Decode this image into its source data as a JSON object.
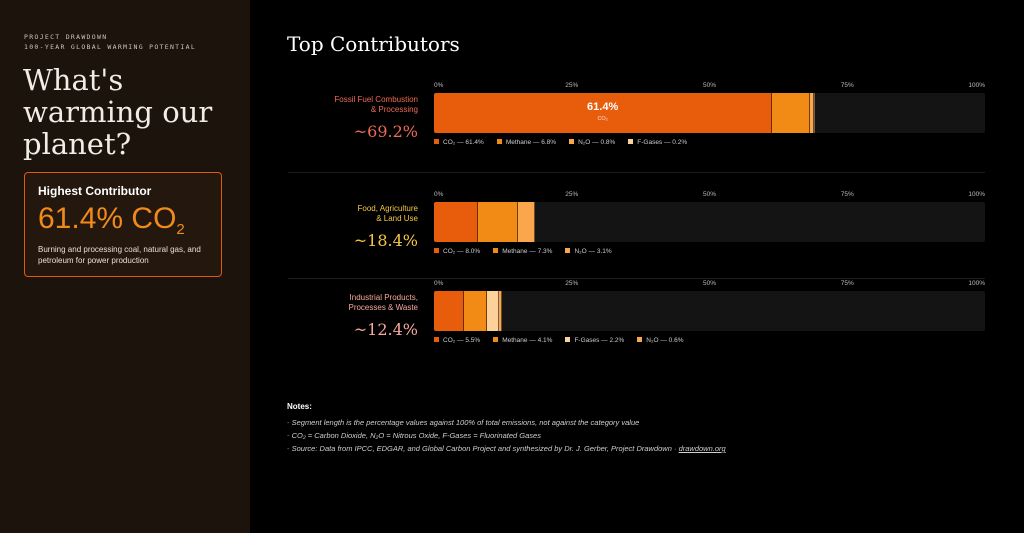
{
  "sidebar": {
    "kicker_1": "PROJECT DRAWDOWN",
    "kicker_2": "100-YEAR GLOBAL WARMING POTENTIAL",
    "headline": "What's warming our planet?",
    "card": {
      "title": "Highest Contributor",
      "value": "61.4% CO",
      "value_sub": "2",
      "description": "Burning and processing coal, natural gas, and petroleum for power production"
    }
  },
  "main": {
    "title": "Top Contributors"
  },
  "colors": {
    "co2": "#e85d0c",
    "methane": "#f28a16",
    "n2o": "#f9a64c",
    "fgases": "#fcd29a",
    "accent": "#e05a0e"
  },
  "chart_data": {
    "type": "bar",
    "orientation": "horizontal",
    "stacked": true,
    "xlim": [
      0,
      100
    ],
    "x_ticks": [
      "0%",
      "25%",
      "50%",
      "75%",
      "100%"
    ],
    "categories": [
      {
        "label_lines": [
          "Fossil Fuel Combustion",
          "& Processing"
        ],
        "total_label": "~69.2%",
        "total_color": "#f06a55",
        "segments": [
          {
            "gas": "co2",
            "value": 61.4,
            "legend": "CO₂ — 61.4%",
            "label": "61.4%",
            "sublabel": "CO₂"
          },
          {
            "gas": "methane",
            "value": 6.8,
            "legend": "Methane — 6.8%"
          },
          {
            "gas": "n2o",
            "value": 0.8,
            "legend": "N₂O — 0.8%"
          },
          {
            "gas": "fgases",
            "value": 0.2,
            "legend": "F-Gases — 0.2%"
          }
        ]
      },
      {
        "label_lines": [
          "Food, Agriculture",
          "& Land Use"
        ],
        "total_label": "~18.4%",
        "total_color": "#f5c842",
        "segments": [
          {
            "gas": "co2",
            "value": 8.0,
            "legend": "CO₂ — 8.0%"
          },
          {
            "gas": "methane",
            "value": 7.3,
            "legend": "Methane — 7.3%"
          },
          {
            "gas": "n2o",
            "value": 3.1,
            "legend": "N₂O — 3.1%"
          }
        ]
      },
      {
        "label_lines": [
          "Industrial Products,",
          "Processes & Waste"
        ],
        "total_label": "~12.4%",
        "total_color": "#f7a89a",
        "segments": [
          {
            "gas": "co2",
            "value": 5.5,
            "legend": "CO₂ — 5.5%"
          },
          {
            "gas": "methane",
            "value": 4.1,
            "legend": "Methane — 4.1%"
          },
          {
            "gas": "fgases",
            "value": 2.2,
            "legend": "F-Gases — 2.2%"
          },
          {
            "gas": "n2o",
            "value": 0.6,
            "legend": "N₂O — 0.6%"
          }
        ]
      }
    ]
  },
  "notes": {
    "title": "Notes:",
    "items": [
      "Segment length is the percentage values against 100% of total emissions, not against the category value",
      "CO₂ = Carbon Dioxide, N₂O = Nitrous Oxide, F-Gases = Fluorinated Gases"
    ],
    "source_text": "Source: Data from IPCC, EDGAR, and Global Carbon Project and synthesized by Dr. J. Gerber, Project Drawdown · ",
    "source_link": "drawdown.org"
  }
}
